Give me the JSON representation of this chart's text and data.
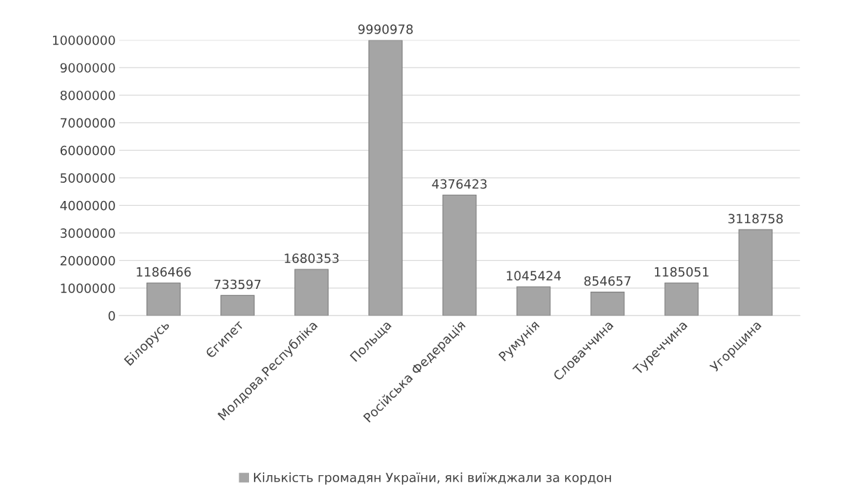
{
  "chart_data": {
    "type": "bar",
    "categories": [
      "Білорусь",
      "Єгипет",
      "Молдова,Республіка",
      "Польща",
      "Російська Федерація",
      "Румунія",
      "Словаччина",
      "Туреччина",
      "Угорщина"
    ],
    "series": [
      {
        "name": "Кількість громадян України, які виїжджали за кордон",
        "color": "#a5a5a5",
        "values": [
          1186466,
          733597,
          1680353,
          9990978,
          4376423,
          1045424,
          854657,
          1185051,
          3118758
        ]
      }
    ],
    "ylim": [
      0,
      10000000
    ],
    "yticks": [
      0,
      1000000,
      2000000,
      3000000,
      4000000,
      5000000,
      6000000,
      7000000,
      8000000,
      9000000,
      10000000
    ],
    "grid": "y",
    "legend": "bottom",
    "data_labels": true
  }
}
